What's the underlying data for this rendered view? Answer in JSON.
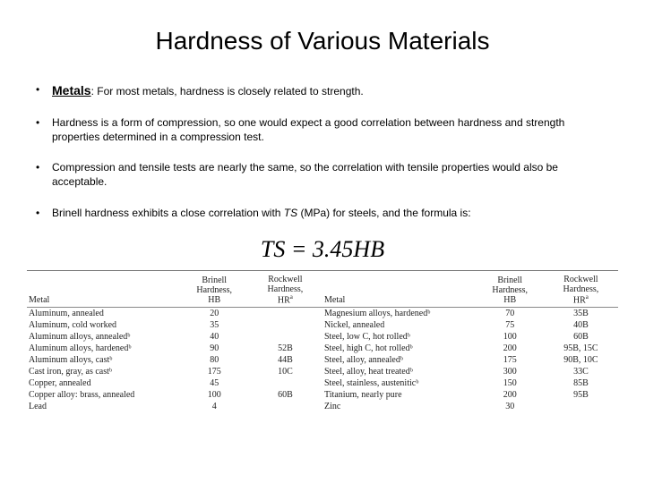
{
  "title": "Hardness of Various Materials",
  "bullets": {
    "b1_lead": "Metals",
    "b1_follow": ": For most metals, hardness is closely related to strength.",
    "b2": "Hardness is a form of compression, so one would expect a good correlation between hardness and strength properties determined in a compression test.",
    "b3": "Compression and tensile tests are nearly the same, so the correlation with tensile properties would also be acceptable.",
    "b4_pre": "Brinell hardness exhibits a close correlation with ",
    "b4_em": "TS",
    "b4_post": " (MPa) for steels, and the formula is:"
  },
  "formula": "TS = 3.45HB",
  "table_headers": {
    "metal": "Metal",
    "hb_line1": "Brinell",
    "hb_line2": "Hardness,",
    "hb_line3": "HB",
    "hr_line1": "Rockwell",
    "hr_line2": "Hardness,",
    "hr_line3": "HR"
  },
  "left_rows": [
    {
      "metal": "Aluminum, annealed",
      "hb": "20",
      "hr": ""
    },
    {
      "metal": "Aluminum, cold worked",
      "hb": "35",
      "hr": ""
    },
    {
      "metal": "Aluminum alloys, annealedᵇ",
      "hb": "40",
      "hr": ""
    },
    {
      "metal": "Aluminum alloys, hardenedᵇ",
      "hb": "90",
      "hr": "52B"
    },
    {
      "metal": "Aluminum alloys, castᵇ",
      "hb": "80",
      "hr": "44B"
    },
    {
      "metal": "Cast iron, gray, as castᵇ",
      "hb": "175",
      "hr": "10C"
    },
    {
      "metal": "Copper, annealed",
      "hb": "45",
      "hr": ""
    },
    {
      "metal": "Copper alloy: brass, annealed",
      "hb": "100",
      "hr": "60B"
    },
    {
      "metal": "Lead",
      "hb": "4",
      "hr": ""
    }
  ],
  "right_rows": [
    {
      "metal": "Magnesium alloys, hardenedᵇ",
      "hb": "70",
      "hr": "35B"
    },
    {
      "metal": "Nickel, annealed",
      "hb": "75",
      "hr": "40B"
    },
    {
      "metal": "Steel, low C, hot rolledᵇ",
      "hb": "100",
      "hr": "60B"
    },
    {
      "metal": "Steel, high C, hot rolledᵇ",
      "hb": "200",
      "hr": "95B, 15C"
    },
    {
      "metal": "Steel, alloy, annealedᵇ",
      "hb": "175",
      "hr": "90B, 10C"
    },
    {
      "metal": "Steel, alloy, heat treatedᵇ",
      "hb": "300",
      "hr": "33C"
    },
    {
      "metal": "Steel, stainless, austeniticᵇ",
      "hb": "150",
      "hr": "85B"
    },
    {
      "metal": "Titanium, nearly pure",
      "hb": "200",
      "hr": "95B"
    },
    {
      "metal": "Zinc",
      "hb": "30",
      "hr": ""
    }
  ]
}
